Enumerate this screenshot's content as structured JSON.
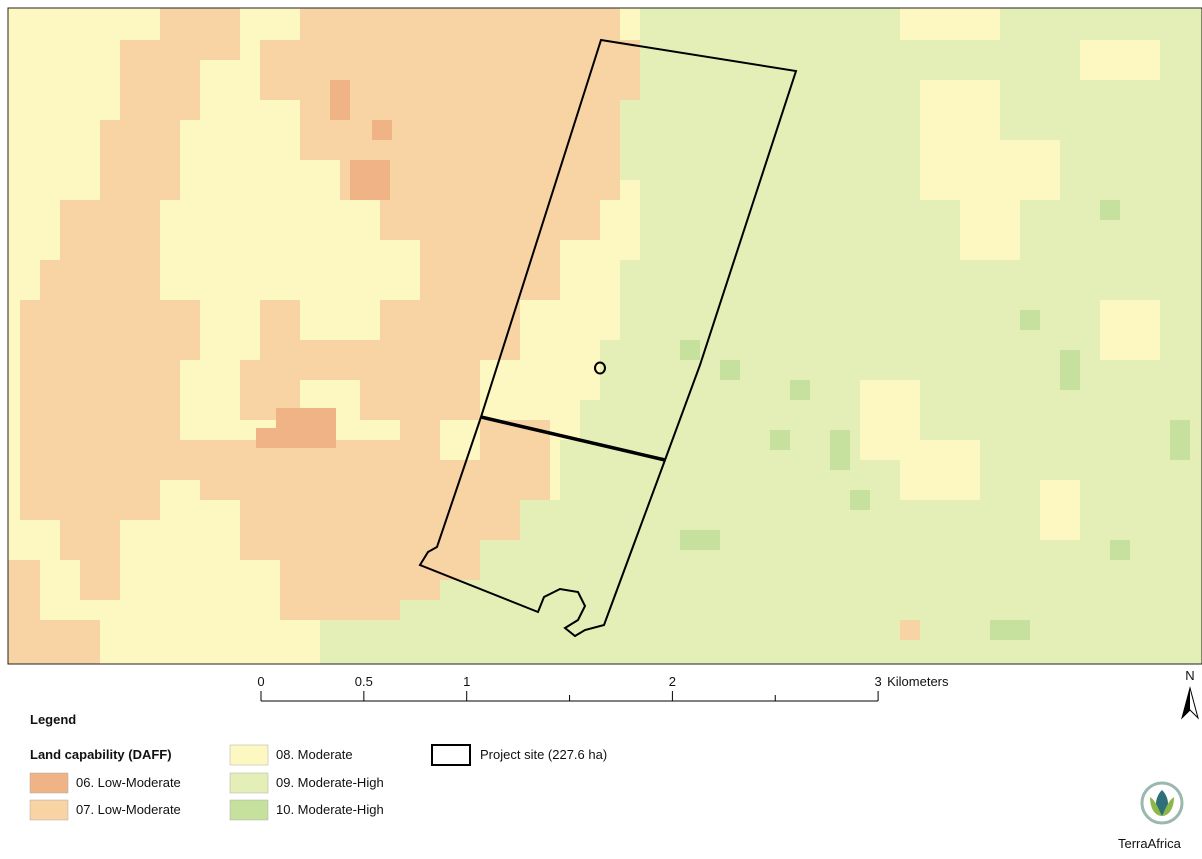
{
  "map": {
    "legend": {
      "title": "Legend",
      "group_title": "Land capability (DAFF)",
      "classes": [
        {
          "label": "06. Low-Moderate",
          "color": "#f0b386"
        },
        {
          "label": "07. Low-Moderate",
          "color": "#f8d3a4"
        },
        {
          "label": "08. Moderate",
          "color": "#fdf8c2"
        },
        {
          "label": "09. Moderate-High",
          "color": "#e4efb7"
        },
        {
          "label": "10. Moderate-High",
          "color": "#c6e19e"
        }
      ],
      "project_site": "Project site (227.6 ha)"
    },
    "scale_bar": {
      "ticks": [
        0,
        0.5,
        1,
        2,
        3
      ],
      "minor": [
        1.5,
        2.5
      ],
      "unit": "Kilometers"
    },
    "north": "N",
    "logo": "TerraAfrica"
  }
}
